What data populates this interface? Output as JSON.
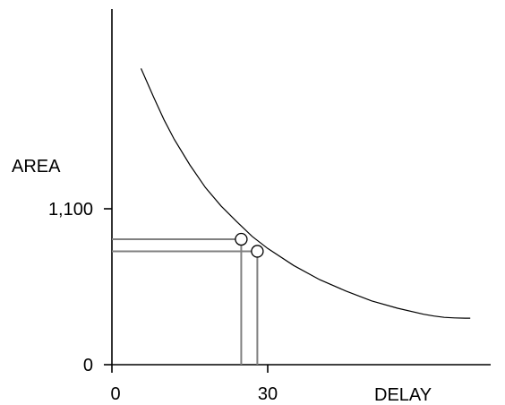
{
  "chart_data": {
    "type": "line",
    "title": "",
    "xlabel": "DELAY",
    "ylabel": "AREA",
    "x_ticks": [
      "0",
      "30"
    ],
    "y_ticks": [
      "0",
      "1,100"
    ],
    "xlim": [
      0,
      69
    ],
    "ylim": [
      0,
      2150
    ],
    "series": [
      {
        "x": [
          5.6,
          8,
          10,
          12,
          15,
          18,
          21,
          24,
          27,
          30,
          35,
          40,
          45,
          50,
          55,
          60,
          62,
          64,
          66,
          68,
          69
        ],
        "y": [
          2090,
          1890,
          1730,
          1590,
          1410,
          1250,
          1120,
          1010,
          905,
          820,
          700,
          600,
          520,
          450,
          398,
          356,
          343,
          334,
          330,
          328,
          328
        ]
      }
    ],
    "highlighted_points": [
      {
        "x": 24.9,
        "y": 885
      },
      {
        "x": 28.0,
        "y": 800
      }
    ],
    "colors": {
      "axis": "#000000",
      "curve": "#000000",
      "guides": "#808080",
      "marker_fill": "#ffffff"
    }
  }
}
